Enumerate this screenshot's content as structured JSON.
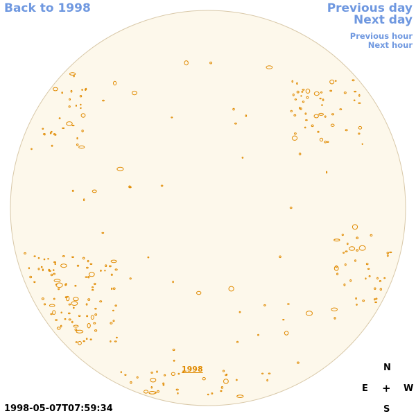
{
  "nav": {
    "back_label": "Back to 1998",
    "prev_day_label": "Previous day",
    "next_day_label": "Next day",
    "prev_hour_label": "Previous hour",
    "next_hour_label": "Next hour"
  },
  "disk": {
    "year_label": "1998",
    "fill_color": "#fdf8eb",
    "limb_color": "#d8c8a8",
    "contour_color": "#e08a00"
  },
  "compass": {
    "north": "N",
    "east": "E",
    "center": "+",
    "west": "W",
    "south": "S"
  },
  "timestamp": "1998-05-07T07:59:34",
  "colors": {
    "link": "#6f98e0",
    "year_link": "#e08a00",
    "text": "#000000"
  }
}
